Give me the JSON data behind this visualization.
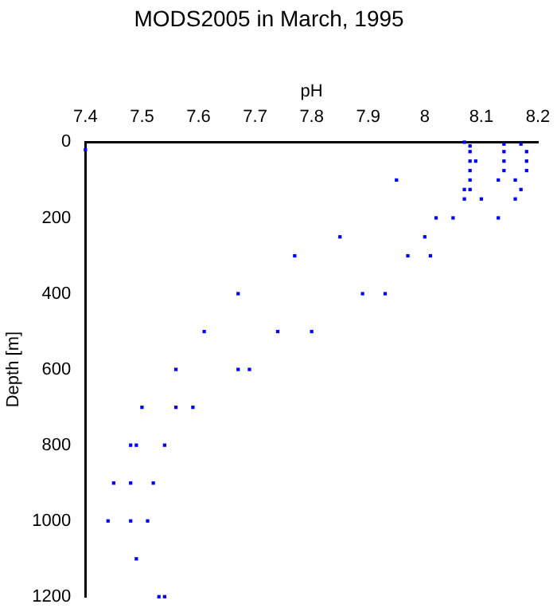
{
  "chart_data": {
    "type": "scatter",
    "title": "MODS2005 in March, 1995",
    "xlabel": "pH",
    "ylabel": "Depth [m]",
    "xlim": [
      7.4,
      8.2
    ],
    "xticks": [
      7.4,
      7.5,
      7.6,
      7.7,
      7.8,
      7.9,
      8,
      8.1,
      8.2
    ],
    "ylim": [
      1200,
      0
    ],
    "yticks": [
      0,
      200,
      400,
      600,
      800,
      1000,
      1200
    ],
    "grid": false,
    "marker": "square",
    "legend": false,
    "series": [
      {
        "color": "#0000ff",
        "x": [
          7.4,
          8.07,
          8.08,
          8.08,
          8.08,
          8.09,
          8.08,
          8.08,
          8.08,
          8.07,
          8.07,
          8.1,
          8.14,
          8.14,
          8.14,
          8.14,
          8.13,
          8.17,
          8.18,
          8.18,
          8.18,
          8.16,
          8.17,
          8.16,
          7.95,
          8.02,
          8.05,
          8.13,
          7.85,
          8,
          7.77,
          7.97,
          8.01,
          7.67,
          7.89,
          7.93,
          7.61,
          7.74,
          7.8,
          7.56,
          7.67,
          7.69,
          7.5,
          7.56,
          7.59,
          7.48,
          7.49,
          7.54,
          7.45,
          7.48,
          7.52,
          7.44,
          7.48,
          7.51,
          7.49,
          7.53,
          7.54
        ],
        "values": [
          20,
          0,
          10,
          25,
          50,
          50,
          75,
          100,
          125,
          125,
          150,
          150,
          5,
          25,
          50,
          75,
          100,
          5,
          25,
          50,
          75,
          100,
          125,
          150,
          100,
          200,
          200,
          200,
          250,
          250,
          300,
          300,
          300,
          400,
          400,
          400,
          500,
          500,
          500,
          600,
          600,
          600,
          700,
          700,
          700,
          800,
          800,
          800,
          900,
          900,
          900,
          1000,
          1000,
          1000,
          1100,
          1200,
          1200
        ]
      }
    ]
  }
}
